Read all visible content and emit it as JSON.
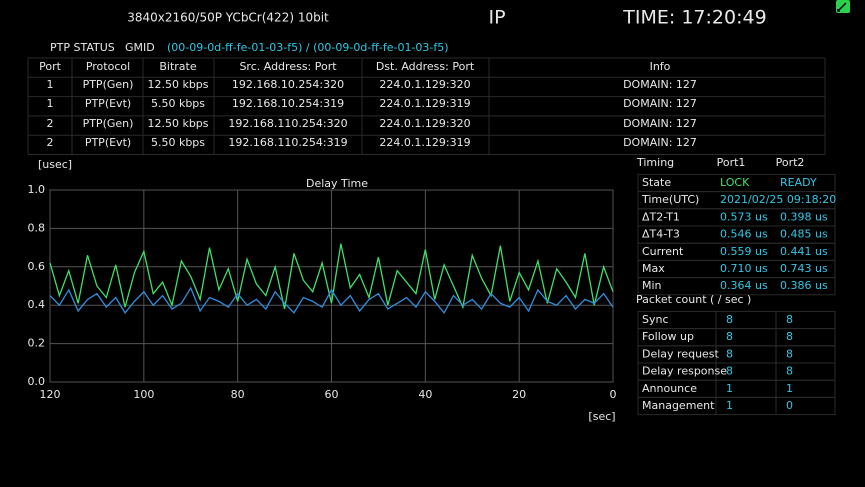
{
  "header": {
    "format": "3840x2160/50P YCbCr(422) 10bit",
    "mode": "IP",
    "time": "TIME: 17:20:49"
  },
  "ptp": {
    "title": "PTP STATUS",
    "gmid_label": "GMID",
    "gmid": "(00-09-0d-ff-fe-01-03-f5) / (00-09-0d-ff-fe-01-03-f5)"
  },
  "table": {
    "header": [
      "Port",
      "Protocol",
      "Bitrate",
      "Src. Address: Port",
      "Dst. Address: Port",
      "Info"
    ],
    "rows": [
      [
        "1",
        "PTP(Gen)",
        "12.50 kbps",
        "192.168.10.254:320",
        "224.0.1.129:320",
        "DOMAIN: 127"
      ],
      [
        "1",
        "PTP(Evt)",
        "5.50 kbps",
        "192.168.10.254:319",
        "224.0.1.129:319",
        "DOMAIN: 127"
      ],
      [
        "2",
        "PTP(Gen)",
        "12.50 kbps",
        "192.168.110.254:320",
        "224.0.1.129:320",
        "DOMAIN: 127"
      ],
      [
        "2",
        "PTP(Evt)",
        "5.50 kbps",
        "192.168.110.254:319",
        "224.0.1.129:319",
        "DOMAIN: 127"
      ]
    ]
  },
  "chart_data": {
    "type": "line",
    "title": "Delay Time",
    "y_unit": "[usec]",
    "x_unit": "[sec]",
    "x": [
      120,
      118,
      116,
      114,
      112,
      110,
      108,
      106,
      104,
      102,
      100,
      98,
      96,
      94,
      92,
      90,
      88,
      86,
      84,
      82,
      80,
      78,
      76,
      74,
      72,
      70,
      68,
      66,
      64,
      62,
      60,
      58,
      56,
      54,
      52,
      50,
      48,
      46,
      44,
      42,
      40,
      38,
      36,
      34,
      32,
      30,
      28,
      26,
      24,
      22,
      20,
      18,
      16,
      14,
      12,
      10,
      8,
      6,
      4,
      2,
      0
    ],
    "series": [
      {
        "color": "#3ee06a",
        "values": [
          0.62,
          0.45,
          0.58,
          0.41,
          0.66,
          0.5,
          0.44,
          0.61,
          0.39,
          0.57,
          0.68,
          0.46,
          0.52,
          0.4,
          0.63,
          0.55,
          0.43,
          0.7,
          0.48,
          0.59,
          0.42,
          0.64,
          0.51,
          0.45,
          0.6,
          0.38,
          0.67,
          0.53,
          0.47,
          0.62,
          0.41,
          0.72,
          0.49,
          0.56,
          0.44,
          0.65,
          0.4,
          0.58,
          0.52,
          0.46,
          0.69,
          0.43,
          0.61,
          0.5,
          0.39,
          0.66,
          0.54,
          0.45,
          0.71,
          0.42,
          0.57,
          0.48,
          0.63,
          0.41,
          0.59,
          0.52,
          0.44,
          0.67,
          0.4,
          0.6,
          0.47
        ]
      },
      {
        "color": "#2f8fe0",
        "values": [
          0.45,
          0.4,
          0.48,
          0.37,
          0.43,
          0.46,
          0.39,
          0.44,
          0.36,
          0.42,
          0.47,
          0.4,
          0.45,
          0.38,
          0.41,
          0.49,
          0.37,
          0.44,
          0.42,
          0.39,
          0.46,
          0.4,
          0.43,
          0.38,
          0.47,
          0.41,
          0.36,
          0.44,
          0.42,
          0.39,
          0.48,
          0.4,
          0.45,
          0.37,
          0.43,
          0.46,
          0.38,
          0.41,
          0.44,
          0.39,
          0.47,
          0.42,
          0.36,
          0.45,
          0.4,
          0.43,
          0.38,
          0.46,
          0.41,
          0.39,
          0.44,
          0.37,
          0.48,
          0.42,
          0.4,
          0.45,
          0.38,
          0.43,
          0.41,
          0.46,
          0.39
        ]
      }
    ],
    "xlim": [
      120,
      0
    ],
    "xticks": [
      120,
      100,
      80,
      60,
      40,
      20,
      0
    ],
    "ylim": [
      0,
      1
    ],
    "yticks": [
      {
        "value": 0,
        "label": "0.0"
      },
      {
        "value": 0.2,
        "label": "0.2"
      },
      {
        "value": 0.4,
        "label": "0.4"
      },
      {
        "value": 0.6,
        "label": "0.6"
      },
      {
        "value": 0.8,
        "label": "0.8"
      },
      {
        "value": 1,
        "label": "1.0"
      }
    ],
    "grid": true
  },
  "timing": {
    "title": "Timing",
    "ports": [
      "Port1",
      "Port2"
    ],
    "rows": [
      {
        "label": "State",
        "values": [
          "LOCK",
          "READY"
        ]
      },
      {
        "label": "Time(UTC)",
        "value": "2021/02/25  09:18:20"
      },
      {
        "label": "ΔT2-T1",
        "values": [
          "0.573 us",
          "0.398 us"
        ]
      },
      {
        "label": "ΔT4-T3",
        "values": [
          "0.546 us",
          "0.485 us"
        ]
      },
      {
        "label": "Current",
        "values": [
          "0.559 us",
          "0.441 us"
        ]
      },
      {
        "label": "Max",
        "values": [
          "0.710 us",
          "0.743 us"
        ]
      },
      {
        "label": "Min",
        "values": [
          "0.364 us",
          "0.386 us"
        ]
      }
    ]
  },
  "packets": {
    "title": "Packet count ( / sec )",
    "rows": [
      {
        "label": "Sync",
        "values": [
          8,
          8
        ]
      },
      {
        "label": "Follow up",
        "values": [
          8,
          8
        ]
      },
      {
        "label": "Delay request",
        "values": [
          8,
          8
        ]
      },
      {
        "label": "Delay response",
        "values": [
          8,
          8
        ]
      },
      {
        "label": "Announce",
        "values": [
          1,
          1
        ]
      },
      {
        "label": "Management",
        "values": [
          1,
          0
        ]
      }
    ]
  }
}
